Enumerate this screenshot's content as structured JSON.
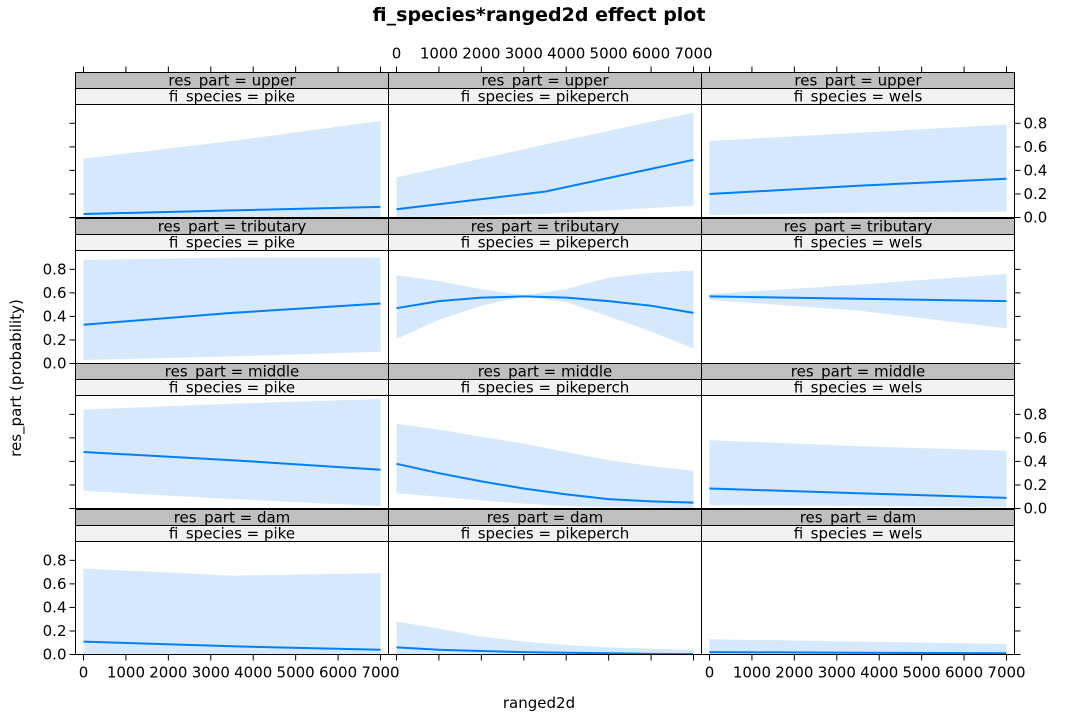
{
  "chart_data": {
    "type": "line",
    "title": "fi_species*ranged2d effect plot",
    "xlabel": "ranged2d",
    "ylabel": "res_part (probability)",
    "x_range": [
      0,
      7000
    ],
    "x_ticks": [
      0,
      1000,
      2000,
      3000,
      4000,
      5000,
      6000,
      7000
    ],
    "ylim": [
      0,
      0.96
    ],
    "y_ticks": [
      0.0,
      0.2,
      0.4,
      0.6,
      0.8
    ],
    "grid": false,
    "band_color": "#d6e8fb",
    "line_color": "#0080ff",
    "strip_outer_color": "#bfbfbf",
    "strip_inner_color": "#f2f2f2",
    "columns": [
      "pike",
      "pikeperch",
      "wels"
    ],
    "rows": [
      "upper",
      "tributary",
      "middle",
      "dam"
    ],
    "panels": [
      {
        "res_part": "upper",
        "fi_species": "pike",
        "x": [
          0,
          3500,
          7000
        ],
        "fit": [
          0.03,
          0.06,
          0.09
        ],
        "lower": [
          0.0,
          0.0,
          0.0
        ],
        "upper": [
          0.5,
          0.65,
          0.82
        ]
      },
      {
        "res_part": "upper",
        "fi_species": "pikeperch",
        "x": [
          0,
          3500,
          7000
        ],
        "fit": [
          0.07,
          0.22,
          0.49
        ],
        "lower": [
          0.0,
          0.03,
          0.1
        ],
        "upper": [
          0.34,
          0.62,
          0.89
        ]
      },
      {
        "res_part": "upper",
        "fi_species": "wels",
        "x": [
          0,
          3500,
          7000
        ],
        "fit": [
          0.2,
          0.27,
          0.33
        ],
        "lower": [
          0.02,
          0.04,
          0.05
        ],
        "upper": [
          0.65,
          0.72,
          0.79
        ]
      },
      {
        "res_part": "tributary",
        "fi_species": "pike",
        "x": [
          0,
          3500,
          7000
        ],
        "fit": [
          0.33,
          0.43,
          0.51
        ],
        "lower": [
          0.03,
          0.06,
          0.1
        ],
        "upper": [
          0.88,
          0.9,
          0.9
        ]
      },
      {
        "res_part": "tributary",
        "fi_species": "pikeperch",
        "x": [
          0,
          1000,
          2000,
          3000,
          4000,
          5000,
          6000,
          7000
        ],
        "fit": [
          0.47,
          0.53,
          0.56,
          0.57,
          0.56,
          0.53,
          0.49,
          0.43
        ],
        "lower": [
          0.21,
          0.37,
          0.49,
          0.57,
          0.52,
          0.4,
          0.27,
          0.13
        ],
        "upper": [
          0.75,
          0.7,
          0.63,
          0.58,
          0.63,
          0.73,
          0.77,
          0.79
        ]
      },
      {
        "res_part": "tributary",
        "fi_species": "wels",
        "x": [
          0,
          3500,
          7000
        ],
        "fit": [
          0.57,
          0.55,
          0.53
        ],
        "lower": [
          0.54,
          0.45,
          0.3
        ],
        "upper": [
          0.59,
          0.67,
          0.76
        ]
      },
      {
        "res_part": "middle",
        "fi_species": "pike",
        "x": [
          0,
          3500,
          7000
        ],
        "fit": [
          0.48,
          0.41,
          0.33
        ],
        "lower": [
          0.15,
          0.08,
          0.02
        ],
        "upper": [
          0.84,
          0.89,
          0.93
        ]
      },
      {
        "res_part": "middle",
        "fi_species": "pikeperch",
        "x": [
          0,
          1000,
          2000,
          3000,
          4000,
          5000,
          6000,
          7000
        ],
        "fit": [
          0.38,
          0.3,
          0.23,
          0.17,
          0.12,
          0.08,
          0.06,
          0.05
        ],
        "lower": [
          0.13,
          0.1,
          0.07,
          0.04,
          0.02,
          0.01,
          0.01,
          0.0
        ],
        "upper": [
          0.72,
          0.67,
          0.61,
          0.55,
          0.48,
          0.41,
          0.36,
          0.32
        ]
      },
      {
        "res_part": "middle",
        "fi_species": "wels",
        "x": [
          0,
          3500,
          7000
        ],
        "fit": [
          0.17,
          0.13,
          0.09
        ],
        "lower": [
          0.03,
          0.02,
          0.01
        ],
        "upper": [
          0.58,
          0.53,
          0.49
        ]
      },
      {
        "res_part": "dam",
        "fi_species": "pike",
        "x": [
          0,
          3500,
          7000
        ],
        "fit": [
          0.11,
          0.07,
          0.04
        ],
        "lower": [
          0.0,
          0.0,
          0.0
        ],
        "upper": [
          0.73,
          0.67,
          0.69
        ]
      },
      {
        "res_part": "dam",
        "fi_species": "pikeperch",
        "x": [
          0,
          1000,
          2000,
          3000,
          4000,
          5000,
          6000,
          7000
        ],
        "fit": [
          0.06,
          0.04,
          0.03,
          0.02,
          0.015,
          0.01,
          0.005,
          0.003
        ],
        "lower": [
          0.0,
          0.0,
          0.0,
          0.0,
          0.0,
          0.0,
          0.0,
          0.0
        ],
        "upper": [
          0.28,
          0.22,
          0.15,
          0.11,
          0.08,
          0.06,
          0.05,
          0.04
        ]
      },
      {
        "res_part": "dam",
        "fi_species": "wels",
        "x": [
          0,
          3500,
          7000
        ],
        "fit": [
          0.02,
          0.015,
          0.01
        ],
        "lower": [
          0.0,
          0.0,
          0.0
        ],
        "upper": [
          0.13,
          0.11,
          0.09
        ]
      }
    ]
  }
}
